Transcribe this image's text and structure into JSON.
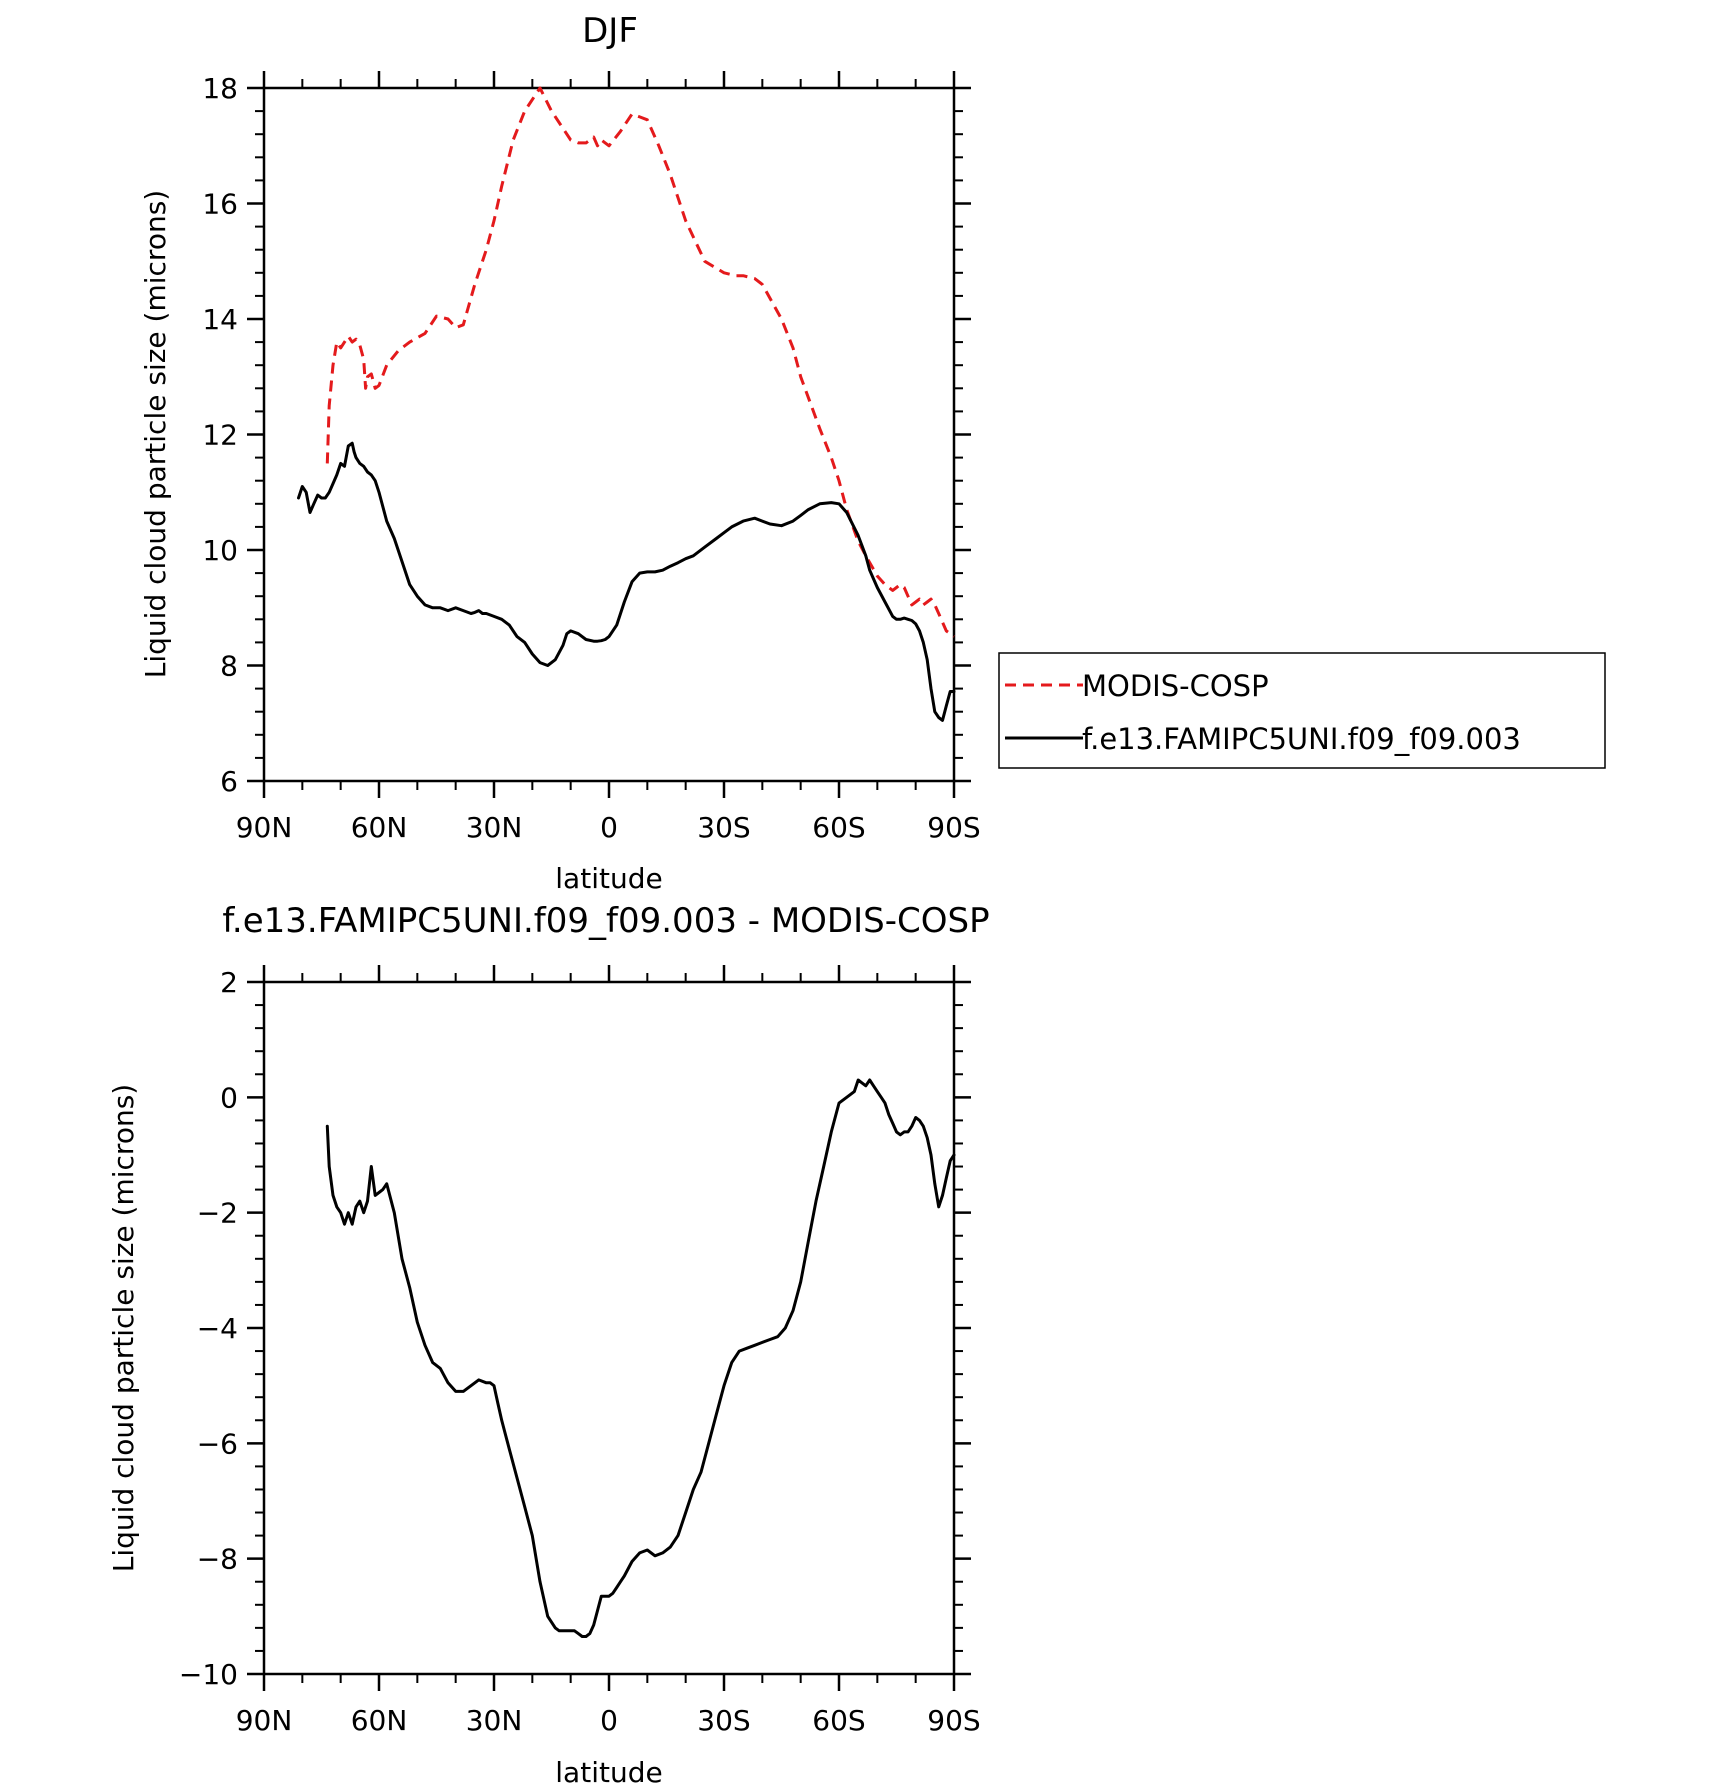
{
  "chart_data": [
    {
      "type": "line",
      "title": "DJF",
      "xlabel": "latitude",
      "ylabel": "Liquid cloud particle size (microns)",
      "xlim": [
        90,
        -90
      ],
      "ylim": [
        6,
        18
      ],
      "x_ticks": [
        {
          "v": 90,
          "label": "90N"
        },
        {
          "v": 60,
          "label": "60N"
        },
        {
          "v": 30,
          "label": "30N"
        },
        {
          "v": 0,
          "label": "0"
        },
        {
          "v": -30,
          "label": "30S"
        },
        {
          "v": -60,
          "label": "60S"
        },
        {
          "v": -90,
          "label": "90S"
        }
      ],
      "y_ticks": [
        {
          "v": 6,
          "label": "6"
        },
        {
          "v": 8,
          "label": "8"
        },
        {
          "v": 10,
          "label": "10"
        },
        {
          "v": 12,
          "label": "12"
        },
        {
          "v": 14,
          "label": "14"
        },
        {
          "v": 16,
          "label": "16"
        },
        {
          "v": 18,
          "label": "18"
        }
      ],
      "legend": {
        "placement": "outside-right",
        "entries": [
          "MODIS-COSP",
          "f.e13.FAMIPC5UNI.f09_f09.003"
        ]
      },
      "series": [
        {
          "name": "MODIS-COSP",
          "color": "#e41a1c",
          "dash": "dashed",
          "x": [
            73.5,
            73,
            72,
            71,
            70,
            69,
            68,
            67,
            66,
            65,
            64,
            63.5,
            63,
            62,
            61,
            60,
            58,
            55,
            52,
            48,
            45,
            42,
            40,
            38,
            35,
            32,
            30,
            28,
            25,
            22,
            18,
            15,
            12,
            10,
            8,
            6,
            4,
            3,
            2,
            0,
            -3,
            -6,
            -8,
            -10,
            -13,
            -16,
            -18,
            -20,
            -25,
            -30,
            -33,
            -35,
            -38,
            -40,
            -45,
            -48,
            -50,
            -55,
            -58,
            -60,
            -62,
            -65,
            -67,
            -70,
            -72,
            -74,
            -75,
            -76,
            -77,
            -78,
            -79,
            -80,
            -81,
            -82,
            -83,
            -84,
            -85,
            -86,
            -87,
            -88,
            -89,
            -90
          ],
          "values": [
            11.5,
            12.5,
            13.2,
            13.6,
            13.5,
            13.6,
            13.7,
            13.6,
            13.65,
            13.55,
            13.3,
            12.8,
            13.0,
            13.05,
            12.8,
            12.85,
            13.2,
            13.45,
            13.6,
            13.75,
            14.05,
            14.0,
            13.85,
            13.9,
            14.6,
            15.2,
            15.7,
            16.3,
            17.1,
            17.6,
            18.0,
            17.6,
            17.3,
            17.1,
            17.05,
            17.05,
            17.15,
            17.0,
            17.1,
            17.0,
            17.25,
            17.55,
            17.5,
            17.45,
            17.0,
            16.5,
            16.1,
            15.7,
            15.0,
            14.8,
            14.75,
            14.75,
            14.7,
            14.6,
            14.0,
            13.5,
            13.0,
            12.1,
            11.6,
            11.2,
            10.7,
            10.15,
            9.9,
            9.55,
            9.4,
            9.3,
            9.35,
            9.4,
            9.35,
            9.2,
            9.05,
            9.1,
            9.15,
            9.05,
            9.1,
            9.15,
            9.05,
            8.9,
            8.75,
            8.6,
            8.55,
            8.5
          ]
        },
        {
          "name": "f.e13.FAMIPC5UNI.f09_f09.003",
          "color": "#000000",
          "dash": "solid",
          "x": [
            81,
            80,
            79,
            78,
            77,
            76,
            75,
            74,
            73,
            72,
            71,
            70,
            69,
            68,
            67,
            66.5,
            66,
            65,
            64,
            63,
            62,
            61,
            60,
            58,
            56,
            54,
            52,
            50,
            48,
            46,
            44,
            42,
            40,
            38,
            36,
            35,
            34,
            33,
            32,
            30,
            28,
            26,
            24,
            22,
            20,
            18,
            16,
            14,
            12,
            11,
            10,
            8,
            6,
            4,
            3,
            2,
            1,
            0,
            -2,
            -4,
            -6,
            -8,
            -10,
            -12,
            -14,
            -16,
            -18,
            -20,
            -22,
            -25,
            -28,
            -30,
            -32,
            -35,
            -38,
            -40,
            -42,
            -45,
            -48,
            -50,
            -52,
            -55,
            -58,
            -60,
            -62,
            -65,
            -67,
            -68,
            -69,
            -70,
            -72,
            -74,
            -75,
            -76,
            -77,
            -78,
            -79,
            -80,
            -81,
            -82,
            -83,
            -84,
            -85,
            -86,
            -87,
            -88,
            -89,
            -90
          ],
          "values": [
            10.9,
            11.1,
            11.0,
            10.65,
            10.8,
            10.95,
            10.9,
            10.9,
            11.0,
            11.15,
            11.3,
            11.5,
            11.45,
            11.8,
            11.85,
            11.7,
            11.6,
            11.5,
            11.45,
            11.35,
            11.3,
            11.2,
            11.0,
            10.5,
            10.2,
            9.8,
            9.4,
            9.2,
            9.05,
            9.0,
            9.0,
            8.95,
            9.0,
            8.95,
            8.9,
            8.92,
            8.95,
            8.9,
            8.9,
            8.85,
            8.8,
            8.7,
            8.5,
            8.4,
            8.2,
            8.05,
            8.0,
            8.1,
            8.35,
            8.55,
            8.6,
            8.55,
            8.45,
            8.42,
            8.42,
            8.43,
            8.45,
            8.5,
            8.7,
            9.1,
            9.45,
            9.6,
            9.62,
            9.62,
            9.65,
            9.72,
            9.78,
            9.85,
            9.9,
            10.05,
            10.2,
            10.3,
            10.4,
            10.5,
            10.55,
            10.5,
            10.45,
            10.42,
            10.5,
            10.6,
            10.7,
            10.8,
            10.82,
            10.8,
            10.65,
            10.25,
            9.9,
            9.65,
            9.5,
            9.35,
            9.1,
            8.85,
            8.8,
            8.8,
            8.82,
            8.8,
            8.78,
            8.72,
            8.6,
            8.4,
            8.1,
            7.6,
            7.2,
            7.1,
            7.05,
            7.3,
            7.55,
            7.55
          ]
        }
      ]
    },
    {
      "type": "line",
      "title": "f.e13.FAMIPC5UNI.f09_f09.003 - MODIS-COSP",
      "xlabel": "latitude",
      "ylabel": "Liquid cloud particle size (microns)",
      "xlim": [
        90,
        -90
      ],
      "ylim": [
        -10,
        2
      ],
      "x_ticks": [
        {
          "v": 90,
          "label": "90N"
        },
        {
          "v": 60,
          "label": "60N"
        },
        {
          "v": 30,
          "label": "30N"
        },
        {
          "v": 0,
          "label": "0"
        },
        {
          "v": -30,
          "label": "30S"
        },
        {
          "v": -60,
          "label": "60S"
        },
        {
          "v": -90,
          "label": "90S"
        }
      ],
      "y_ticks": [
        {
          "v": -10,
          "label": "−10"
        },
        {
          "v": -8,
          "label": "−8"
        },
        {
          "v": -6,
          "label": "−6"
        },
        {
          "v": -4,
          "label": "−4"
        },
        {
          "v": -2,
          "label": "−2"
        },
        {
          "v": 0,
          "label": "0"
        },
        {
          "v": 2,
          "label": "2"
        }
      ],
      "series": [
        {
          "name": "f.e13.FAMIPC5UNI.f09_f09.003 - MODIS-COSP",
          "color": "#000000",
          "dash": "solid",
          "x": [
            73.5,
            73,
            72,
            71,
            70,
            69,
            68,
            67,
            66,
            65,
            64,
            63,
            62,
            61,
            60,
            59,
            58,
            56,
            54,
            52,
            50,
            48,
            46,
            44,
            42,
            40,
            38,
            36,
            34,
            32,
            31,
            30,
            29,
            28,
            27,
            26,
            24,
            22,
            20,
            18,
            16,
            14,
            13,
            12,
            11,
            10,
            9,
            8,
            7,
            6,
            5,
            4,
            3,
            2,
            1,
            0,
            -1,
            -2,
            -3,
            -4,
            -6,
            -8,
            -10,
            -12,
            -14,
            -16,
            -18,
            -20,
            -22,
            -24,
            -26,
            -28,
            -30,
            -32,
            -34,
            -36,
            -38,
            -40,
            -42,
            -44,
            -46,
            -48,
            -50,
            -52,
            -54,
            -56,
            -58,
            -60,
            -62,
            -64,
            -65,
            -66,
            -67,
            -68,
            -69,
            -70,
            -71,
            -72,
            -73,
            -74,
            -75,
            -76,
            -77,
            -78,
            -79,
            -80,
            -81,
            -82,
            -83,
            -84,
            -85,
            -86,
            -87,
            -88,
            -89,
            -90
          ],
          "values": [
            -0.5,
            -1.2,
            -1.7,
            -1.9,
            -2.0,
            -2.2,
            -2.0,
            -2.2,
            -1.9,
            -1.8,
            -2.0,
            -1.8,
            -1.2,
            -1.7,
            -1.65,
            -1.6,
            -1.5,
            -2.0,
            -2.8,
            -3.3,
            -3.9,
            -4.3,
            -4.6,
            -4.7,
            -4.95,
            -5.1,
            -5.1,
            -5.0,
            -4.9,
            -4.95,
            -4.95,
            -5.0,
            -5.3,
            -5.6,
            -5.85,
            -6.1,
            -6.6,
            -7.1,
            -7.6,
            -8.4,
            -9.0,
            -9.2,
            -9.25,
            -9.25,
            -9.25,
            -9.25,
            -9.25,
            -9.3,
            -9.35,
            -9.35,
            -9.3,
            -9.15,
            -8.9,
            -8.65,
            -8.65,
            -8.65,
            -8.6,
            -8.5,
            -8.4,
            -8.3,
            -8.05,
            -7.9,
            -7.85,
            -7.95,
            -7.9,
            -7.8,
            -7.6,
            -7.2,
            -6.8,
            -6.5,
            -6.0,
            -5.5,
            -5.0,
            -4.6,
            -4.4,
            -4.35,
            -4.3,
            -4.25,
            -4.2,
            -4.15,
            -4.0,
            -3.7,
            -3.2,
            -2.5,
            -1.8,
            -1.2,
            -0.6,
            -0.1,
            0.0,
            0.1,
            0.3,
            0.25,
            0.2,
            0.3,
            0.2,
            0.1,
            0.0,
            -0.1,
            -0.3,
            -0.45,
            -0.6,
            -0.65,
            -0.6,
            -0.6,
            -0.5,
            -0.35,
            -0.4,
            -0.5,
            -0.7,
            -1.0,
            -1.5,
            -1.9,
            -1.7,
            -1.4,
            -1.1,
            -1.0
          ]
        }
      ]
    }
  ]
}
